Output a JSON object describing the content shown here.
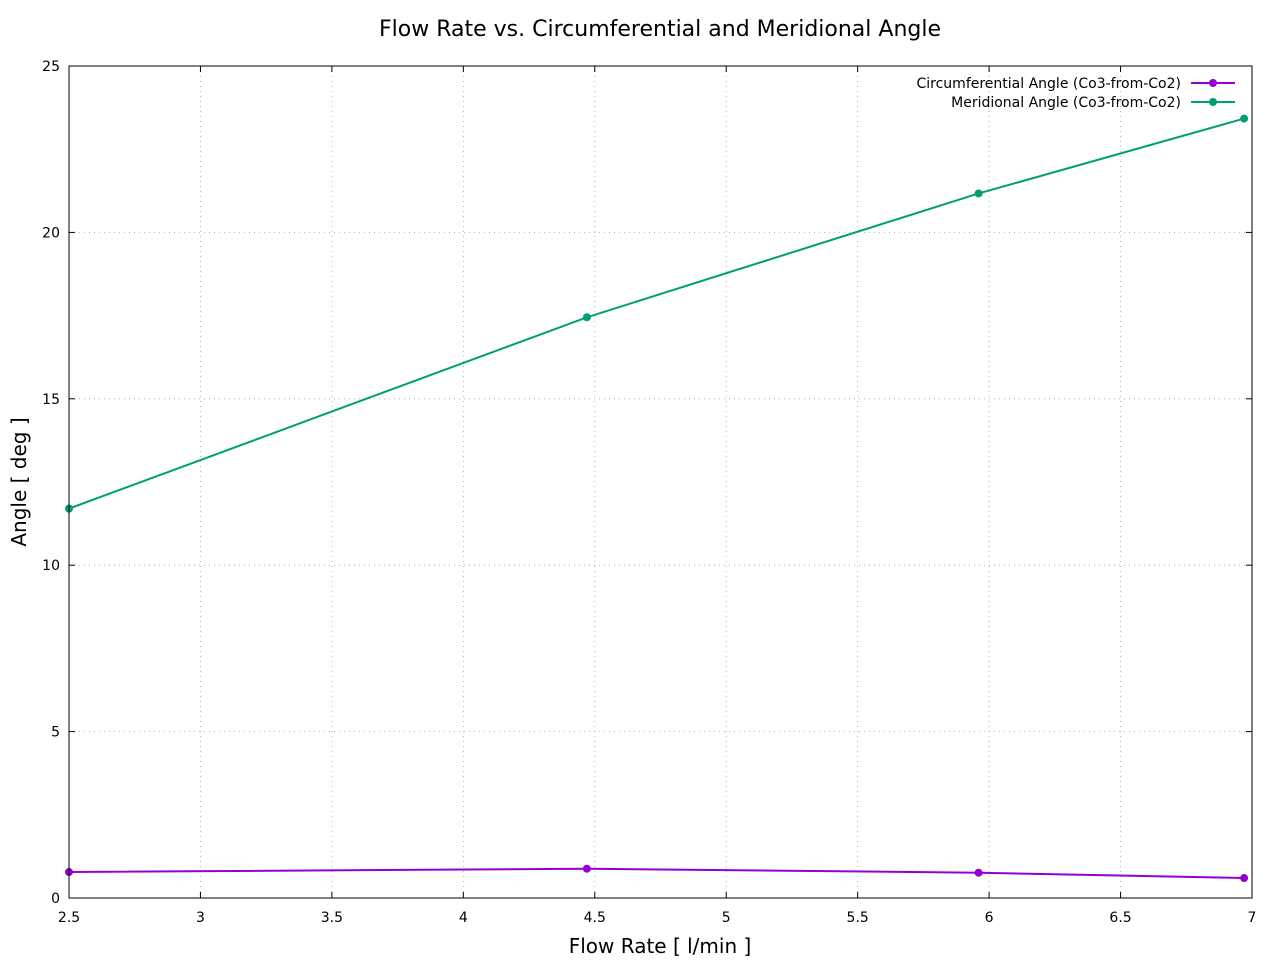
{
  "chart_data": {
    "type": "line",
    "title": "Flow Rate vs. Circumferential and Meridional Angle",
    "xlabel": "Flow Rate [ l/min ]",
    "ylabel": "Angle [ deg ]",
    "xlim": [
      2.5,
      7
    ],
    "ylim": [
      0,
      25
    ],
    "x_ticks": [
      "2.5",
      "3",
      "3.5",
      "4",
      "4.5",
      "5",
      "5.5",
      "6",
      "6.5",
      "7"
    ],
    "y_ticks": [
      "0",
      "5",
      "10",
      "15",
      "20",
      "25"
    ],
    "grid": true,
    "legend_position": "top-right",
    "series": [
      {
        "name": "Circumferential Angle (Co3-from-Co2)",
        "color": "#9400d3",
        "x": [
          2.5,
          4.47,
          5.96,
          6.97
        ],
        "y": [
          0.78,
          0.88,
          0.76,
          0.6
        ]
      },
      {
        "name": "Meridional Angle (Co3-from-Co2)",
        "color": "#009e73",
        "x": [
          2.5,
          4.47,
          5.96,
          6.97
        ],
        "y": [
          11.7,
          17.45,
          21.17,
          23.42
        ]
      }
    ]
  }
}
